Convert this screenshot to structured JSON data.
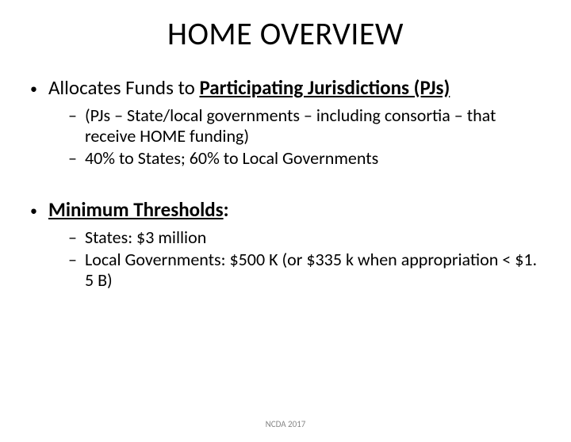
{
  "title": "HOME OVERVIEW",
  "bullets": [
    {
      "prefix": "Allocates Funds to ",
      "bold_underlined": "Participating Jurisdictions (PJs)",
      "sub": [
        "(PJs – State/local governments – including consortia – that receive HOME funding)",
        "40% to States; 60% to Local Governments"
      ]
    },
    {
      "bold_underlined": "Minimum Thresholds",
      "suffix": ":",
      "sub": [
        "States: $3 million",
        "Local Governments: $500 K (or $335 k when appropriation < $1. 5 B)"
      ]
    }
  ],
  "footer": "NCDA 2017",
  "colors": {
    "background": "#ffffff",
    "text": "#000000",
    "footer_text": "#888888"
  },
  "fonts": {
    "title_size": 40,
    "bullet1_size": 25,
    "bullet2_size": 22,
    "footer_size": 11
  }
}
